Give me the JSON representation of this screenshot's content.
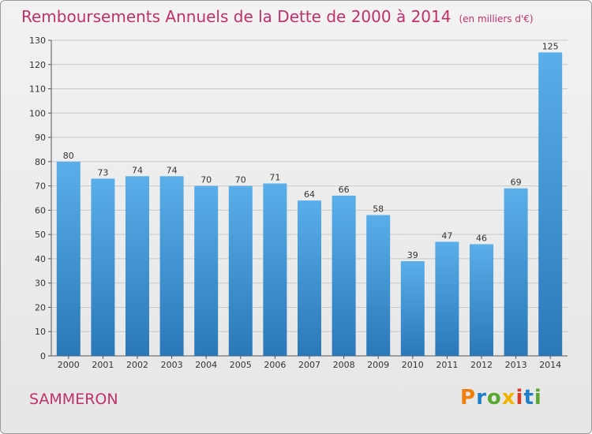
{
  "title": "Remboursements Annuels de la Dette de 2000 à 2014",
  "subtitle": "(en milliers d'€)",
  "town": "SAMMERON",
  "logo": {
    "text": "Proxiti",
    "letters": [
      "P",
      "r",
      "o",
      "x",
      "i",
      "t",
      "i"
    ],
    "colors": [
      "#f07f10",
      "#1e7fc8",
      "#5aa832",
      "#f0b400",
      "#d83a2a",
      "#1e7fc8",
      "#5aa832"
    ]
  },
  "colors": {
    "title": "#c0306a",
    "bar_top": "#5aaeea",
    "bar_bottom": "#2a78b8",
    "grid": "#c8c8c8"
  },
  "chart_data": {
    "type": "bar",
    "title": "Remboursements Annuels de la Dette de 2000 à 2014",
    "subtitle": "(en milliers d'€)",
    "categories": [
      "2000",
      "2001",
      "2002",
      "2003",
      "2004",
      "2005",
      "2006",
      "2007",
      "2008",
      "2009",
      "2010",
      "2011",
      "2012",
      "2013",
      "2014"
    ],
    "values": [
      80,
      73,
      74,
      74,
      70,
      70,
      71,
      64,
      66,
      58,
      39,
      47,
      46,
      69,
      125
    ],
    "ylim": [
      0,
      130
    ],
    "yticks": [
      0,
      10,
      20,
      30,
      40,
      50,
      60,
      70,
      80,
      90,
      100,
      110,
      120,
      130
    ],
    "grid": true,
    "data_labels": true
  }
}
